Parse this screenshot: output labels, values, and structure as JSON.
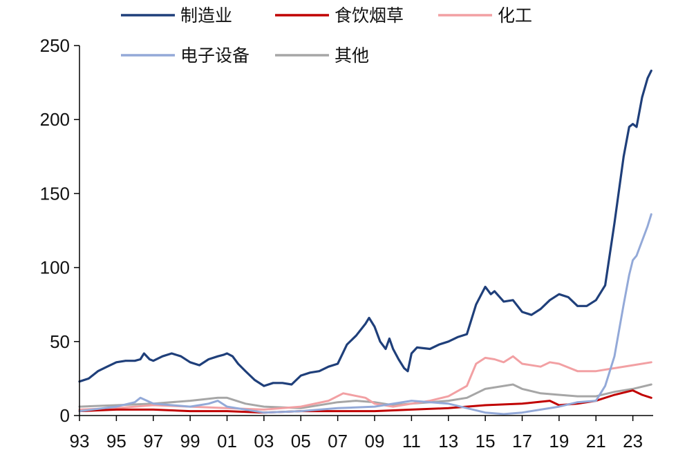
{
  "chart_data": {
    "type": "line",
    "title": "",
    "xlabel": "",
    "ylabel": "",
    "xlim": [
      1993,
      2024.1
    ],
    "ylim": [
      0,
      250
    ],
    "y_ticks": [
      0,
      50,
      100,
      150,
      200,
      250
    ],
    "x_ticks": [
      {
        "value": 1993,
        "label": "93"
      },
      {
        "value": 1995,
        "label": "95"
      },
      {
        "value": 1997,
        "label": "97"
      },
      {
        "value": 1999,
        "label": "99"
      },
      {
        "value": 2001,
        "label": "01"
      },
      {
        "value": 2003,
        "label": "03"
      },
      {
        "value": 2005,
        "label": "05"
      },
      {
        "value": 2007,
        "label": "07"
      },
      {
        "value": 2009,
        "label": "09"
      },
      {
        "value": 2011,
        "label": "11"
      },
      {
        "value": 2013,
        "label": "13"
      },
      {
        "value": 2015,
        "label": "15"
      },
      {
        "value": 2017,
        "label": "17"
      },
      {
        "value": 2019,
        "label": "19"
      },
      {
        "value": 2021,
        "label": "21"
      },
      {
        "value": 2023,
        "label": "23"
      }
    ],
    "grid": false,
    "legend_position": "top",
    "series": [
      {
        "name": "制造业",
        "color": "#1f3f7a",
        "width": 3.2,
        "points": [
          [
            1993.0,
            23
          ],
          [
            1993.5,
            25
          ],
          [
            1994.0,
            30
          ],
          [
            1994.5,
            33
          ],
          [
            1995.0,
            36
          ],
          [
            1995.5,
            37
          ],
          [
            1996.0,
            37
          ],
          [
            1996.3,
            38
          ],
          [
            1996.5,
            42
          ],
          [
            1996.8,
            38
          ],
          [
            1997.0,
            37
          ],
          [
            1997.5,
            40
          ],
          [
            1998.0,
            42
          ],
          [
            1998.5,
            40
          ],
          [
            1999.0,
            36
          ],
          [
            1999.5,
            34
          ],
          [
            2000.0,
            38
          ],
          [
            2000.5,
            40
          ],
          [
            2000.8,
            41
          ],
          [
            2001.0,
            42
          ],
          [
            2001.3,
            40
          ],
          [
            2001.6,
            35
          ],
          [
            2002.0,
            30
          ],
          [
            2002.5,
            24
          ],
          [
            2003.0,
            20
          ],
          [
            2003.5,
            22
          ],
          [
            2004.0,
            22
          ],
          [
            2004.5,
            21
          ],
          [
            2005.0,
            27
          ],
          [
            2005.5,
            29
          ],
          [
            2006.0,
            30
          ],
          [
            2006.5,
            33
          ],
          [
            2007.0,
            35
          ],
          [
            2007.5,
            48
          ],
          [
            2008.0,
            54
          ],
          [
            2008.5,
            62
          ],
          [
            2008.7,
            66
          ],
          [
            2009.0,
            60
          ],
          [
            2009.3,
            50
          ],
          [
            2009.6,
            45
          ],
          [
            2009.8,
            52
          ],
          [
            2010.0,
            45
          ],
          [
            2010.3,
            38
          ],
          [
            2010.6,
            32
          ],
          [
            2010.8,
            30
          ],
          [
            2011.0,
            42
          ],
          [
            2011.3,
            46
          ],
          [
            2012.0,
            45
          ],
          [
            2012.5,
            48
          ],
          [
            2013.0,
            50
          ],
          [
            2013.5,
            53
          ],
          [
            2014.0,
            55
          ],
          [
            2014.5,
            75
          ],
          [
            2015.0,
            87
          ],
          [
            2015.3,
            82
          ],
          [
            2015.5,
            84
          ],
          [
            2016.0,
            77
          ],
          [
            2016.5,
            78
          ],
          [
            2017.0,
            70
          ],
          [
            2017.5,
            68
          ],
          [
            2018.0,
            72
          ],
          [
            2018.5,
            78
          ],
          [
            2019.0,
            82
          ],
          [
            2019.5,
            80
          ],
          [
            2020.0,
            74
          ],
          [
            2020.5,
            74
          ],
          [
            2021.0,
            78
          ],
          [
            2021.5,
            88
          ],
          [
            2022.0,
            130
          ],
          [
            2022.5,
            175
          ],
          [
            2022.8,
            195
          ],
          [
            2023.0,
            197
          ],
          [
            2023.2,
            195
          ],
          [
            2023.5,
            215
          ],
          [
            2023.8,
            228
          ],
          [
            2024.0,
            233
          ]
        ]
      },
      {
        "name": "食饮烟草",
        "color": "#c00000",
        "width": 3,
        "points": [
          [
            1993.0,
            3
          ],
          [
            1995.0,
            4
          ],
          [
            1997.0,
            4
          ],
          [
            1999.0,
            3
          ],
          [
            2001.0,
            3
          ],
          [
            2003.0,
            2
          ],
          [
            2005.0,
            3
          ],
          [
            2007.0,
            3
          ],
          [
            2009.0,
            3
          ],
          [
            2011.0,
            4
          ],
          [
            2013.0,
            5
          ],
          [
            2015.0,
            7
          ],
          [
            2017.0,
            8
          ],
          [
            2018.5,
            10
          ],
          [
            2019.0,
            7
          ],
          [
            2020.0,
            8
          ],
          [
            2021.0,
            10
          ],
          [
            2022.0,
            14
          ],
          [
            2023.0,
            17
          ],
          [
            2023.5,
            14
          ],
          [
            2024.0,
            12
          ]
        ]
      },
      {
        "name": "化工",
        "color": "#f2a0a3",
        "width": 3,
        "points": [
          [
            1993.0,
            4
          ],
          [
            1995.0,
            5
          ],
          [
            1997.0,
            7
          ],
          [
            1999.0,
            6
          ],
          [
            2001.0,
            5
          ],
          [
            2003.0,
            4
          ],
          [
            2005.0,
            6
          ],
          [
            2006.5,
            10
          ],
          [
            2007.3,
            15
          ],
          [
            2008.5,
            12
          ],
          [
            2009.0,
            8
          ],
          [
            2010.0,
            6
          ],
          [
            2011.0,
            8
          ],
          [
            2012.0,
            10
          ],
          [
            2013.0,
            13
          ],
          [
            2014.0,
            20
          ],
          [
            2014.5,
            35
          ],
          [
            2015.0,
            39
          ],
          [
            2015.5,
            38
          ],
          [
            2016.0,
            36
          ],
          [
            2016.5,
            40
          ],
          [
            2017.0,
            35
          ],
          [
            2018.0,
            33
          ],
          [
            2018.5,
            36
          ],
          [
            2019.0,
            35
          ],
          [
            2020.0,
            30
          ],
          [
            2021.0,
            30
          ],
          [
            2022.0,
            32
          ],
          [
            2023.0,
            34
          ],
          [
            2024.0,
            36
          ]
        ]
      },
      {
        "name": "电子设备",
        "color": "#93a9d8",
        "width": 3,
        "points": [
          [
            1993.0,
            3
          ],
          [
            1995.0,
            6
          ],
          [
            1996.0,
            9
          ],
          [
            1996.3,
            12
          ],
          [
            1997.0,
            8
          ],
          [
            1999.0,
            6
          ],
          [
            2000.0,
            8
          ],
          [
            2000.5,
            10
          ],
          [
            2001.0,
            6
          ],
          [
            2003.0,
            2
          ],
          [
            2005.0,
            3
          ],
          [
            2007.0,
            5
          ],
          [
            2009.0,
            6
          ],
          [
            2011.0,
            10
          ],
          [
            2013.0,
            8
          ],
          [
            2015.0,
            2
          ],
          [
            2016.0,
            1
          ],
          [
            2017.0,
            2
          ],
          [
            2019.0,
            6
          ],
          [
            2020.0,
            9
          ],
          [
            2021.0,
            10
          ],
          [
            2021.5,
            20
          ],
          [
            2022.0,
            40
          ],
          [
            2022.5,
            75
          ],
          [
            2022.8,
            95
          ],
          [
            2023.0,
            105
          ],
          [
            2023.2,
            108
          ],
          [
            2023.5,
            118
          ],
          [
            2023.8,
            128
          ],
          [
            2024.0,
            136
          ]
        ]
      },
      {
        "name": "其他",
        "color": "#a6a6a6",
        "width": 3,
        "points": [
          [
            1993.0,
            6
          ],
          [
            1995.0,
            7
          ],
          [
            1997.0,
            8
          ],
          [
            1999.0,
            10
          ],
          [
            2000.5,
            12
          ],
          [
            2001.0,
            12
          ],
          [
            2002.0,
            8
          ],
          [
            2003.0,
            6
          ],
          [
            2005.0,
            5
          ],
          [
            2007.0,
            9
          ],
          [
            2008.0,
            10
          ],
          [
            2009.0,
            9
          ],
          [
            2010.0,
            7
          ],
          [
            2011.0,
            8
          ],
          [
            2012.0,
            9
          ],
          [
            2013.0,
            10
          ],
          [
            2014.0,
            12
          ],
          [
            2015.0,
            18
          ],
          [
            2016.0,
            20
          ],
          [
            2016.5,
            21
          ],
          [
            2017.0,
            18
          ],
          [
            2018.0,
            15
          ],
          [
            2019.0,
            14
          ],
          [
            2020.0,
            13
          ],
          [
            2021.0,
            13
          ],
          [
            2022.0,
            16
          ],
          [
            2023.0,
            18
          ],
          [
            2024.0,
            21
          ]
        ]
      }
    ]
  }
}
